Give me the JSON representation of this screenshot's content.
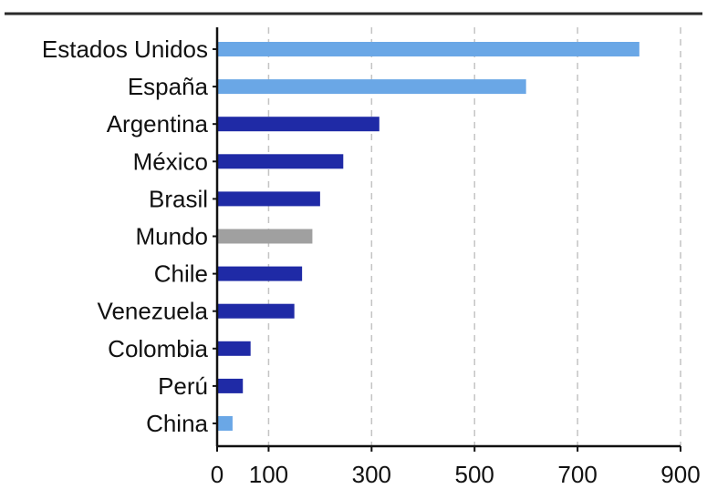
{
  "chart_data": {
    "type": "bar",
    "orientation": "horizontal",
    "title": "",
    "xlabel": "",
    "ylabel": "",
    "xlim": [
      0,
      900
    ],
    "xticks": [
      0,
      100,
      300,
      500,
      700,
      900
    ],
    "grid": "vertical dashed",
    "legend": "none",
    "categories": [
      "Estados Unidos",
      "España",
      "Argentina",
      "México",
      "Brasil",
      "Mundo",
      "Chile",
      "Venezuela",
      "Colombia",
      "Perú",
      "China"
    ],
    "values": [
      820,
      600,
      315,
      245,
      200,
      185,
      165,
      150,
      65,
      50,
      30
    ],
    "bar_colors": [
      "#6aa7e6",
      "#6aa7e6",
      "#1f2aa6",
      "#1f2aa6",
      "#1f2aa6",
      "#a0a0a0",
      "#1f2aa6",
      "#1f2aa6",
      "#1f2aa6",
      "#1f2aa6",
      "#6aa7e6"
    ]
  }
}
